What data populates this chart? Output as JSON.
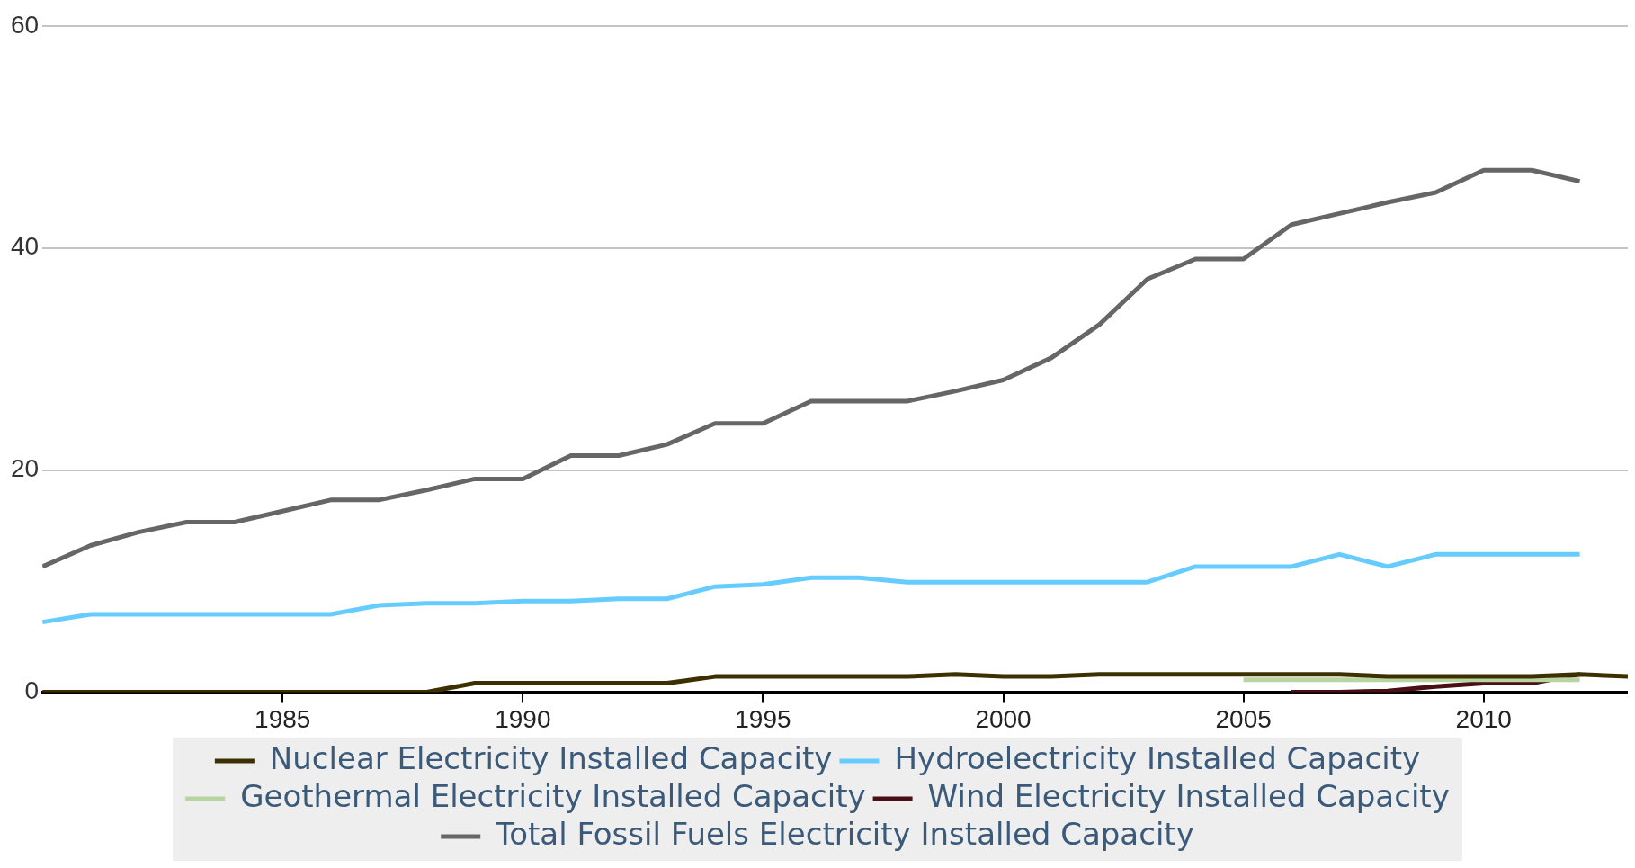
{
  "chart_data": {
    "type": "line",
    "x": [
      1980,
      1981,
      1982,
      1983,
      1984,
      1985,
      1986,
      1987,
      1988,
      1989,
      1990,
      1991,
      1992,
      1993,
      1994,
      1995,
      1996,
      1997,
      1998,
      1999,
      2000,
      2001,
      2002,
      2003,
      2004,
      2005,
      2006,
      2007,
      2008,
      2009,
      2010,
      2011,
      2012,
      2013
    ],
    "series": [
      {
        "name": "Nuclear Electricity Installed Capacity",
        "color": "#3d3000",
        "values": [
          0,
          0,
          0,
          0,
          0,
          0,
          0,
          0,
          0,
          0.8,
          0.8,
          0.8,
          0.8,
          0.8,
          1.4,
          1.4,
          1.4,
          1.4,
          1.4,
          1.6,
          1.4,
          1.4,
          1.6,
          1.6,
          1.6,
          1.6,
          1.6,
          1.6,
          1.4,
          1.4,
          1.4,
          1.4,
          1.6,
          1.4
        ]
      },
      {
        "name": "Hydroelectricity Installed Capacity",
        "color": "#66ccff",
        "values": [
          6.3,
          7,
          7,
          7,
          7,
          7,
          7,
          7.8,
          8,
          8,
          8.2,
          8.2,
          8.4,
          8.4,
          9.5,
          9.7,
          10.3,
          10.3,
          9.9,
          9.9,
          9.9,
          9.9,
          9.9,
          9.9,
          11.3,
          11.3,
          11.3,
          12.4,
          11.3,
          12.4,
          12.4,
          12.4,
          12.4,
          null
        ]
      },
      {
        "name": "Geothermal Electricity Installed Capacity",
        "color": "#b8d4a0",
        "values": [
          null,
          null,
          null,
          null,
          null,
          null,
          null,
          null,
          null,
          null,
          null,
          null,
          null,
          null,
          null,
          null,
          null,
          null,
          null,
          null,
          null,
          null,
          null,
          null,
          null,
          1.1,
          1.1,
          1.1,
          1.1,
          1.1,
          1.1,
          1.1,
          1.1,
          null
        ]
      },
      {
        "name": "Wind Electricity Installed Capacity",
        "color": "#4a0f14",
        "values": [
          null,
          null,
          null,
          null,
          null,
          null,
          null,
          null,
          null,
          null,
          null,
          null,
          null,
          null,
          null,
          null,
          null,
          null,
          null,
          null,
          null,
          null,
          null,
          null,
          null,
          null,
          0,
          0,
          0.1,
          0.5,
          0.8,
          0.8,
          1.6,
          null
        ]
      },
      {
        "name": "Total Fossil Fuels Electricity Installed Capacity",
        "color": "#666666",
        "values": [
          11.3,
          13.2,
          14.4,
          15.3,
          15.3,
          16.3,
          17.3,
          17.3,
          18.2,
          19.2,
          19.2,
          21.3,
          21.3,
          22.3,
          24.2,
          24.2,
          26.2,
          26.2,
          26.2,
          27.1,
          28.1,
          30.1,
          33.1,
          37.2,
          39,
          39,
          42.1,
          43.1,
          44.1,
          45,
          47,
          47,
          46,
          null
        ]
      }
    ],
    "xlim": [
      1980,
      2013
    ],
    "xticks": [
      1985,
      1990,
      1995,
      2000,
      2005,
      2010
    ],
    "ylim": [
      0,
      60
    ],
    "yticks": [
      0,
      20,
      40,
      60
    ],
    "grid": "y",
    "legend": "bottom",
    "marker": "none",
    "line_style": "solid"
  }
}
